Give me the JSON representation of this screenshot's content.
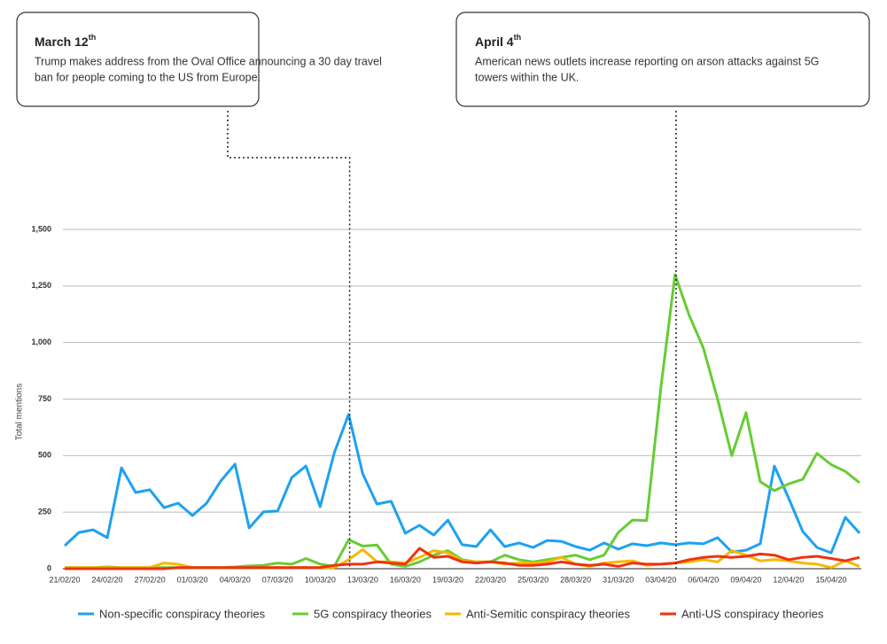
{
  "chart_data": {
    "type": "line",
    "y_label": "Total mentions",
    "categories": [
      "21/02/20",
      null,
      null,
      "24/02/20",
      null,
      null,
      "27/02/20",
      null,
      null,
      "01/03/20",
      null,
      null,
      "04/03/20",
      null,
      null,
      "07/03/20",
      null,
      null,
      "10/03/20",
      null,
      null,
      "13/03/20",
      null,
      null,
      "16/03/20",
      null,
      null,
      "19/03/20",
      null,
      null,
      "22/03/20",
      null,
      null,
      "25/03/20",
      null,
      null,
      "28/03/20",
      null,
      null,
      "31/03/20",
      null,
      null,
      "03/04/20",
      null,
      null,
      "06/04/20",
      null,
      null,
      "09/04/20",
      null,
      null,
      "12/04/20",
      null,
      null,
      "15/04/20",
      null,
      null
    ],
    "ylim": [
      0,
      1500
    ],
    "yticks": [
      0,
      250,
      500,
      750,
      {
        "value": 1000,
        "label": "1,000"
      },
      {
        "value": 1250,
        "label": "1,250"
      },
      {
        "value": 1500,
        "label": "1,500"
      }
    ],
    "grid": true,
    "legend": "bottom",
    "series": [
      {
        "name": "Non-specific conspiracy theories",
        "color": "#1da1f2",
        "values": [
          102,
          160,
          172,
          137,
          446,
          337,
          349,
          270,
          290,
          235,
          290,
          388,
          462,
          180,
          251,
          255,
          403,
          454,
          274,
          513,
          682,
          419,
          286,
          298,
          157,
          192,
          149,
          215,
          106,
          98,
          172,
          98,
          114,
          94,
          125,
          121,
          98,
          82,
          114,
          86,
          110,
          102,
          114,
          106,
          114,
          110,
          137,
          74,
          82,
          110,
          454,
          313,
          165,
          94,
          70,
          227,
          157
        ]
      },
      {
        "name": "5G conspiracy theories",
        "color": "#66cc33",
        "values": [
          5,
          5,
          5,
          8,
          5,
          5,
          5,
          5,
          5,
          5,
          5,
          5,
          8,
          12,
          15,
          25,
          20,
          45,
          20,
          10,
          128,
          100,
          105,
          20,
          10,
          30,
          60,
          80,
          40,
          30,
          30,
          60,
          40,
          30,
          40,
          50,
          60,
          40,
          60,
          160,
          215,
          213,
          800,
          1300,
          1120,
          975,
          750,
          500,
          690,
          385,
          345,
          375,
          395,
          510,
          460,
          430,
          380
        ]
      },
      {
        "name": "Anti-Semitic conspiracy theories",
        "color": "#f5b800",
        "values": [
          5,
          5,
          5,
          5,
          5,
          5,
          5,
          25,
          20,
          5,
          5,
          5,
          5,
          5,
          5,
          5,
          5,
          5,
          5,
          5,
          40,
          85,
          30,
          30,
          25,
          50,
          80,
          70,
          35,
          30,
          30,
          20,
          25,
          25,
          30,
          50,
          20,
          10,
          25,
          30,
          35,
          15,
          20,
          25,
          30,
          40,
          30,
          80,
          60,
          35,
          40,
          35,
          25,
          20,
          5,
          35,
          10
        ]
      },
      {
        "name": "Anti-US conspiracy theories",
        "color": "#ee3311",
        "values": [
          0,
          0,
          0,
          0,
          0,
          0,
          0,
          0,
          5,
          5,
          5,
          5,
          5,
          5,
          5,
          5,
          5,
          5,
          5,
          15,
          20,
          20,
          30,
          25,
          20,
          90,
          50,
          55,
          30,
          25,
          30,
          25,
          15,
          15,
          20,
          30,
          20,
          15,
          20,
          10,
          25,
          20,
          20,
          25,
          40,
          50,
          55,
          50,
          55,
          65,
          60,
          40,
          50,
          55,
          45,
          35,
          50
        ]
      }
    ]
  },
  "annotations": [
    {
      "title": "March 12",
      "ordinal": "th",
      "lines": [
        "Trump makes address from the Oval Office announcing a 30 day travel",
        "ban for people coming to the US from Europe."
      ]
    },
    {
      "title": "April 4",
      "ordinal": "th",
      "lines": [
        "American news outlets increase reporting on arson attacks against 5G",
        "towers within the UK."
      ]
    }
  ]
}
